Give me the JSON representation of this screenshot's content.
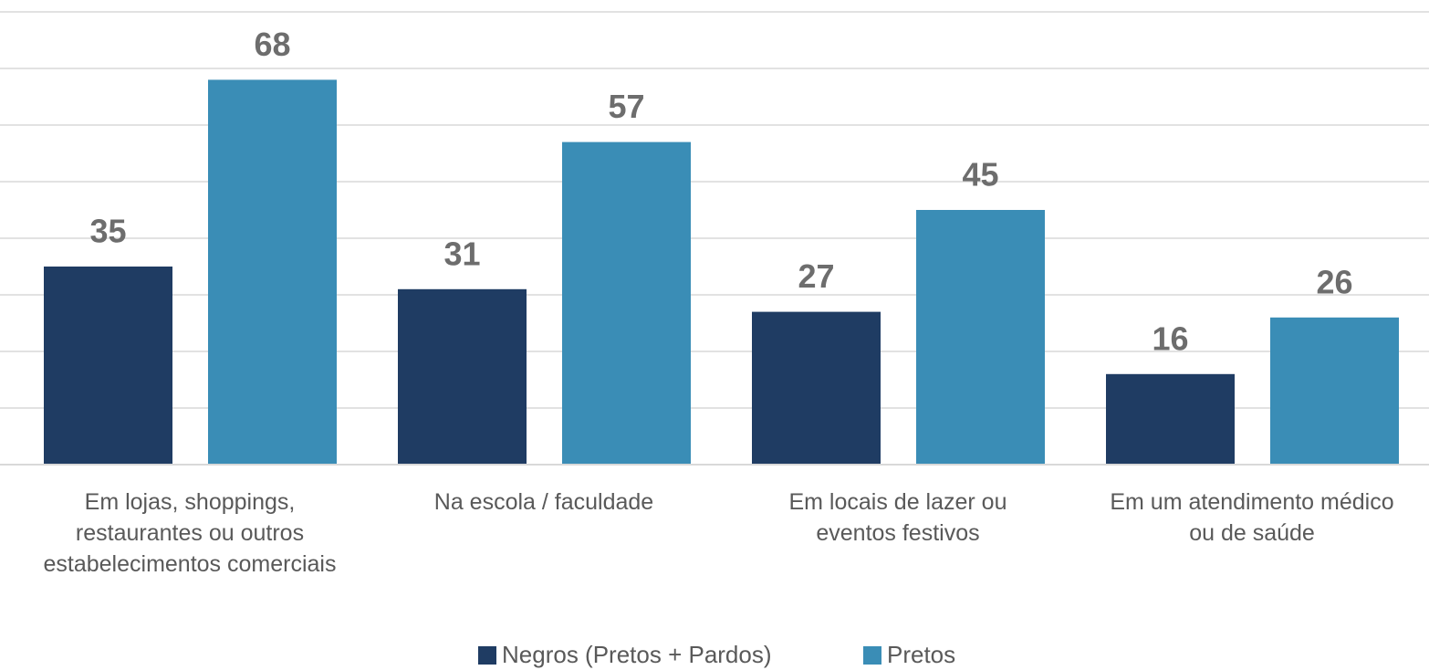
{
  "chart_data": {
    "type": "bar",
    "categories": [
      "Em lojas, shoppings, restaurantes ou outros estabelecimentos comerciais",
      "Na escola / faculdade",
      "Em locais de lazer ou eventos festivos",
      "Em um atendimento médico ou de saúde"
    ],
    "series": [
      {
        "name": "Negros (Pretos + Pardos)",
        "color": "#1f3c63",
        "values": [
          35,
          31,
          27,
          16
        ]
      },
      {
        "name": "Pretos",
        "color": "#3a8db6",
        "values": [
          68,
          57,
          45,
          26
        ]
      }
    ],
    "ylim": [
      0,
      80
    ],
    "yticks": [
      0,
      10,
      20,
      30,
      40,
      50,
      60,
      70,
      80
    ],
    "grid": true,
    "legend": "bottom"
  }
}
